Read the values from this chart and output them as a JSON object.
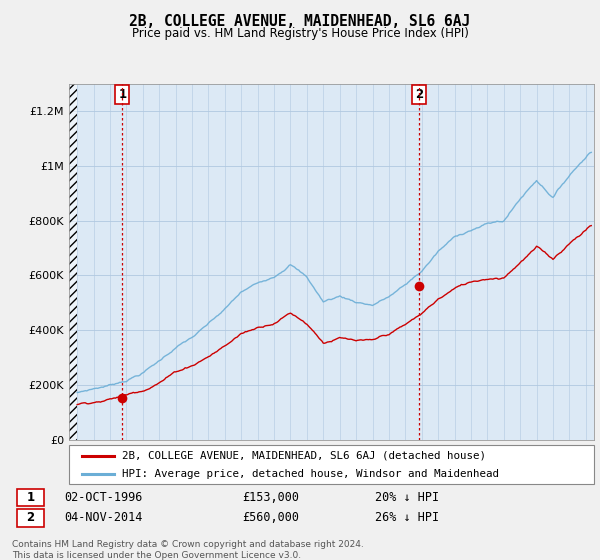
{
  "title": "2B, COLLEGE AVENUE, MAIDENHEAD, SL6 6AJ",
  "subtitle": "Price paid vs. HM Land Registry's House Price Index (HPI)",
  "ylim": [
    0,
    1300000
  ],
  "xlim_start": 1993.5,
  "xlim_end": 2025.5,
  "hpi_color": "#6baed6",
  "price_color": "#cc0000",
  "marker_color": "#cc0000",
  "vline_color": "#cc0000",
  "plot_bg_color": "#dce9f5",
  "fig_bg_color": "#f0f0f0",
  "grid_color": "#b0c8e0",
  "transaction1_x": 1996.75,
  "transaction1_y": 153000,
  "transaction1_label": "1",
  "transaction2_x": 2014.84,
  "transaction2_y": 560000,
  "transaction2_label": "2",
  "legend_label_price": "2B, COLLEGE AVENUE, MAIDENHEAD, SL6 6AJ (detached house)",
  "legend_label_hpi": "HPI: Average price, detached house, Windsor and Maidenhead",
  "table_row1": [
    "1",
    "02-OCT-1996",
    "£153,000",
    "20% ↓ HPI"
  ],
  "table_row2": [
    "2",
    "04-NOV-2014",
    "£560,000",
    "26% ↓ HPI"
  ],
  "footnote": "Contains HM Land Registry data © Crown copyright and database right 2024.\nThis data is licensed under the Open Government Licence v3.0."
}
